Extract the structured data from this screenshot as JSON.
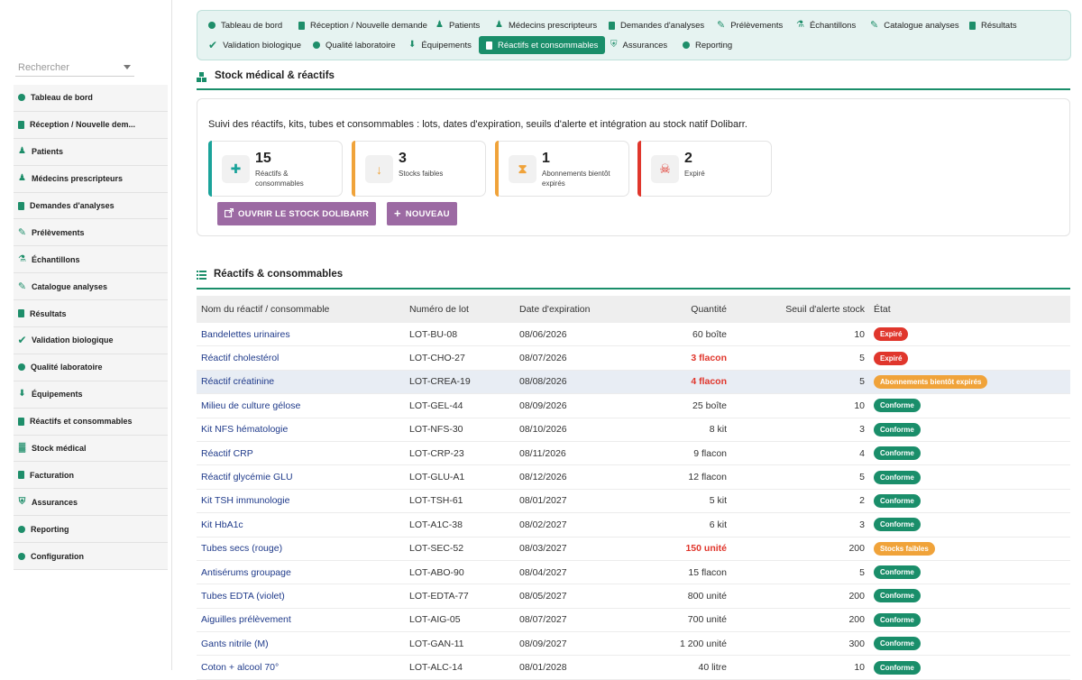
{
  "sidebar": {
    "search_placeholder": "Rechercher",
    "items": [
      {
        "label": "Tableau de bord",
        "icon": "dashboard-icon"
      },
      {
        "label": "Réception / Nouvelle dem...",
        "icon": "document-icon"
      },
      {
        "label": "Patients",
        "icon": "user-icon"
      },
      {
        "label": "Médecins prescripteurs",
        "icon": "doctor-icon"
      },
      {
        "label": "Demandes d'analyses",
        "icon": "document-icon"
      },
      {
        "label": "Prélèvements",
        "icon": "syringe-icon"
      },
      {
        "label": "Échantillons",
        "icon": "flask-icon"
      },
      {
        "label": "Catalogue analyses",
        "icon": "pen-icon"
      },
      {
        "label": "Résultats",
        "icon": "clipboard-icon"
      },
      {
        "label": "Validation biologique",
        "icon": "check-icon"
      },
      {
        "label": "Qualité laboratoire",
        "icon": "badge-icon"
      },
      {
        "label": "Équipements",
        "icon": "microscope-icon"
      },
      {
        "label": "Réactifs et consommables",
        "icon": "bottle-icon"
      },
      {
        "label": "Stock médical",
        "icon": "boxes-icon"
      },
      {
        "label": "Facturation",
        "icon": "invoice-icon"
      },
      {
        "label": "Assurances",
        "icon": "shield-icon"
      },
      {
        "label": "Reporting",
        "icon": "chart-pie-icon"
      },
      {
        "label": "Configuration",
        "icon": "gear-icon"
      }
    ]
  },
  "tabs": [
    {
      "label": "Tableau de bord",
      "icon": "dashboard-icon"
    },
    {
      "label": "Réception / Nouvelle demande",
      "icon": "document-icon"
    },
    {
      "label": "Patients",
      "icon": "user-icon"
    },
    {
      "label": "Médecins prescripteurs",
      "icon": "doctor-icon"
    },
    {
      "label": "Demandes d'analyses",
      "icon": "document-icon"
    },
    {
      "label": "Prélèvements",
      "icon": "syringe-icon"
    },
    {
      "label": "Échantillons",
      "icon": "flask-icon"
    },
    {
      "label": "Catalogue analyses",
      "icon": "pen-icon"
    },
    {
      "label": "Résultats",
      "icon": "clipboard-icon"
    },
    {
      "label": "Validation biologique",
      "icon": "check-icon"
    },
    {
      "label": "Qualité laboratoire",
      "icon": "badge-icon"
    },
    {
      "label": "Équipements",
      "icon": "microscope-icon"
    },
    {
      "label": "Réactifs et consommables",
      "icon": "bottle-icon",
      "active": true
    },
    {
      "label": "Assurances",
      "icon": "shield-icon"
    },
    {
      "label": "Reporting",
      "icon": "chart-pie-icon"
    }
  ],
  "section": {
    "title": "Stock médical & réactifs",
    "description": "Suivi des réactifs, kits, tubes et consommables : lots, dates d'expiration, seuils d'alerte et intégration au stock natif Dolibarr."
  },
  "cards": [
    {
      "value": "15",
      "label": "Réactifs & consommables",
      "color": "#1aa39a",
      "icon": "bottle-icon"
    },
    {
      "value": "3",
      "label": "Stocks faibles",
      "color": "#f0a33a",
      "icon": "arrow-down-icon"
    },
    {
      "value": "1",
      "label": "Abonnements bientôt expirés",
      "color": "#f0a33a",
      "icon": "hourglass-icon"
    },
    {
      "value": "2",
      "label": "Expiré",
      "color": "#e0362c",
      "icon": "skull-icon"
    }
  ],
  "buttons": {
    "open_stock": "OUVRIR LE STOCK DOLIBARR",
    "new": "NOUVEAU"
  },
  "table_section": {
    "title": "Réactifs & consommables"
  },
  "table": {
    "headers": [
      "Nom du réactif / consommable",
      "Numéro de lot",
      "Date d'expiration",
      "Quantité",
      "Seuil d'alerte stock",
      "État"
    ],
    "rows": [
      {
        "name": "Bandelettes urinaires",
        "lot": "LOT-BU-08",
        "date": "08/06/2026",
        "qty": "60 boîte",
        "threshold": "10",
        "status": "Expiré",
        "status_color": "#e0362c",
        "low": false
      },
      {
        "name": "Réactif cholestérol",
        "lot": "LOT-CHO-27",
        "date": "08/07/2026",
        "qty": "3 flacon",
        "threshold": "5",
        "status": "Expiré",
        "status_color": "#e0362c",
        "low": true
      },
      {
        "name": "Réactif créatinine",
        "lot": "LOT-CREA-19",
        "date": "08/08/2026",
        "qty": "4 flacon",
        "threshold": "5",
        "status": "Abonnements bientôt expirés",
        "status_color": "#f0a33a",
        "low": true,
        "highlight": true
      },
      {
        "name": "Milieu de culture gélose",
        "lot": "LOT-GEL-44",
        "date": "08/09/2026",
        "qty": "25 boîte",
        "threshold": "10",
        "status": "Conforme",
        "status_color": "#1a8e6a",
        "low": false
      },
      {
        "name": "Kit NFS hématologie",
        "lot": "LOT-NFS-30",
        "date": "08/10/2026",
        "qty": "8 kit",
        "threshold": "3",
        "status": "Conforme",
        "status_color": "#1a8e6a",
        "low": false
      },
      {
        "name": "Réactif CRP",
        "lot": "LOT-CRP-23",
        "date": "08/11/2026",
        "qty": "9 flacon",
        "threshold": "4",
        "status": "Conforme",
        "status_color": "#1a8e6a",
        "low": false
      },
      {
        "name": "Réactif glycémie GLU",
        "lot": "LOT-GLU-A1",
        "date": "08/12/2026",
        "qty": "12 flacon",
        "threshold": "5",
        "status": "Conforme",
        "status_color": "#1a8e6a",
        "low": false
      },
      {
        "name": "Kit TSH immunologie",
        "lot": "LOT-TSH-61",
        "date": "08/01/2027",
        "qty": "5 kit",
        "threshold": "2",
        "status": "Conforme",
        "status_color": "#1a8e6a",
        "low": false
      },
      {
        "name": "Kit HbA1c",
        "lot": "LOT-A1C-38",
        "date": "08/02/2027",
        "qty": "6 kit",
        "threshold": "3",
        "status": "Conforme",
        "status_color": "#1a8e6a",
        "low": false
      },
      {
        "name": "Tubes secs (rouge)",
        "lot": "LOT-SEC-52",
        "date": "08/03/2027",
        "qty": "150 unité",
        "threshold": "200",
        "status": "Stocks faibles",
        "status_color": "#f0a33a",
        "low": true
      },
      {
        "name": "Antisérums groupage",
        "lot": "LOT-ABO-90",
        "date": "08/04/2027",
        "qty": "15 flacon",
        "threshold": "5",
        "status": "Conforme",
        "status_color": "#1a8e6a",
        "low": false
      },
      {
        "name": "Tubes EDTA (violet)",
        "lot": "LOT-EDTA-77",
        "date": "08/05/2027",
        "qty": "800 unité",
        "threshold": "200",
        "status": "Conforme",
        "status_color": "#1a8e6a",
        "low": false
      },
      {
        "name": "Aiguilles prélèvement",
        "lot": "LOT-AIG-05",
        "date": "08/07/2027",
        "qty": "700 unité",
        "threshold": "200",
        "status": "Conforme",
        "status_color": "#1a8e6a",
        "low": false
      },
      {
        "name": "Gants nitrile (M)",
        "lot": "LOT-GAN-11",
        "date": "08/09/2027",
        "qty": "1 200 unité",
        "threshold": "300",
        "status": "Conforme",
        "status_color": "#1a8e6a",
        "low": false
      },
      {
        "name": "Coton + alcool 70°",
        "lot": "LOT-ALC-14",
        "date": "08/01/2028",
        "qty": "40 litre",
        "threshold": "10",
        "status": "Conforme",
        "status_color": "#1a8e6a",
        "low": false
      }
    ]
  }
}
